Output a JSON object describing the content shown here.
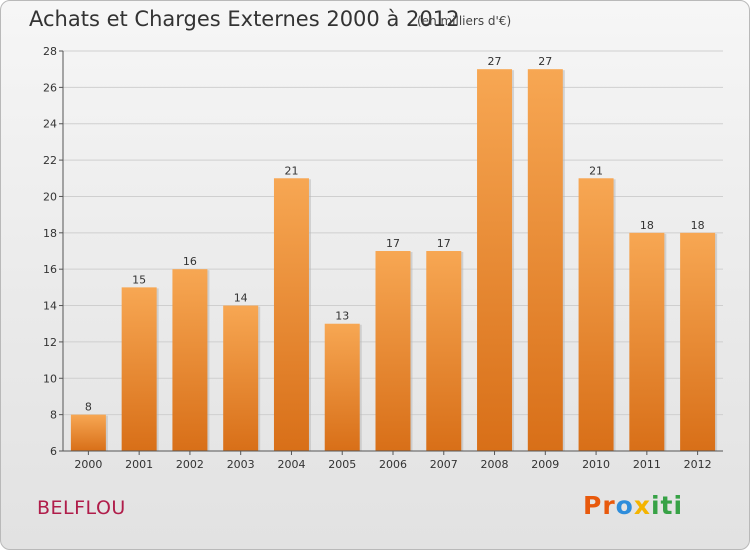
{
  "title": "Achats et Charges Externes 2000 à 2012",
  "subtitle": "(en milliers d'€)",
  "commune": "BELFLOU",
  "logo": {
    "p1": "Pr",
    "p2": "o",
    "p3": "x",
    "p4": "iti"
  },
  "colors": {
    "bar_light": "#f7a753",
    "bar_dark": "#d86f18",
    "axis": "#555555",
    "grid": "#cfcfcf"
  },
  "chart_data": {
    "type": "bar",
    "categories": [
      "2000",
      "2001",
      "2002",
      "2003",
      "2004",
      "2005",
      "2006",
      "2007",
      "2008",
      "2009",
      "2010",
      "2011",
      "2012"
    ],
    "values": [
      8,
      15,
      16,
      14,
      21,
      13,
      17,
      17,
      27,
      27,
      21,
      18,
      18
    ],
    "ylim": [
      6,
      28
    ],
    "yticks": [
      6,
      8,
      10,
      12,
      14,
      16,
      18,
      20,
      22,
      24,
      26,
      28
    ],
    "data_labels": true,
    "grid": true
  }
}
